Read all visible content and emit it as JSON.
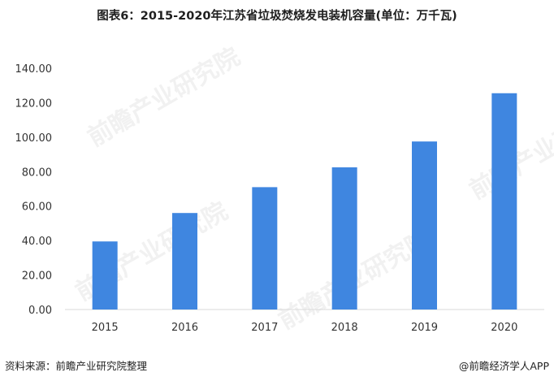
{
  "title": "图表6：2015-2020年江苏省垃圾焚烧发电装机容量(单位：万千瓦)",
  "footer": {
    "source": "资料来源：前瞻产业研究院整理",
    "credit": "@前瞻经济学人APP"
  },
  "watermark": "前瞻产业研究院",
  "colors": {
    "bar": "#3f86e0",
    "axis": "#d9d9d9",
    "text": "#333333"
  },
  "chart_data": {
    "type": "bar",
    "categories": [
      "2015",
      "2016",
      "2017",
      "2018",
      "2019",
      "2020"
    ],
    "values": [
      39.5,
      56.0,
      71.0,
      82.5,
      97.5,
      125.5
    ],
    "yticks": [
      "0.00",
      "20.00",
      "40.00",
      "60.00",
      "80.00",
      "100.00",
      "120.00",
      "140.00"
    ],
    "ylim": [
      0,
      140
    ],
    "grid": false,
    "title": "图表6：2015-2020年江苏省垃圾焚烧发电装机容量(单位：万千瓦)",
    "xlabel": "",
    "ylabel": ""
  }
}
